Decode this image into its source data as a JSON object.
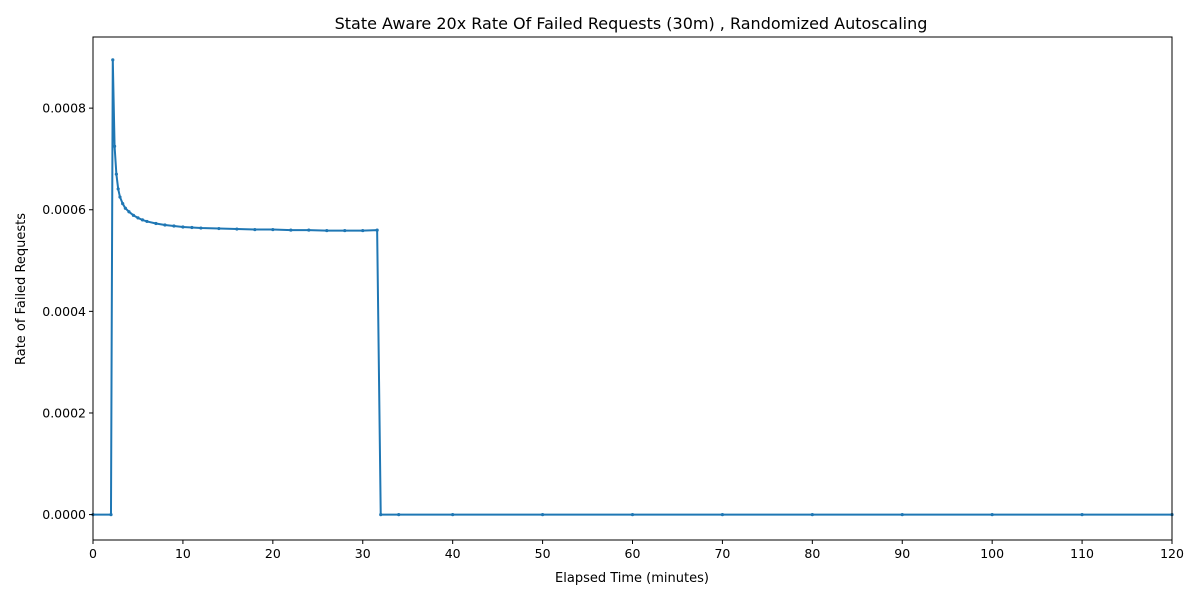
{
  "chart_data": {
    "type": "line",
    "title": "State Aware 20x Rate Of Failed Requests (30m) , Randomized Autoscaling",
    "xlabel": "Elapsed Time (minutes)",
    "ylabel": "Rate of Failed Requests",
    "xlim": [
      0,
      120
    ],
    "ylim": [
      -5e-05,
      0.00094
    ],
    "x_ticks": [
      0,
      10,
      20,
      30,
      40,
      50,
      60,
      70,
      80,
      90,
      100,
      110,
      120
    ],
    "x_tick_labels": [
      "0",
      "10",
      "20",
      "30",
      "40",
      "50",
      "60",
      "70",
      "80",
      "90",
      "100",
      "110",
      "120"
    ],
    "y_ticks": [
      0,
      0.0002,
      0.0004,
      0.0006,
      0.0008
    ],
    "y_tick_labels": [
      "0.0000",
      "0.0002",
      "0.0004",
      "0.0006",
      "0.0008"
    ],
    "grid": false,
    "legend": "none",
    "series_color": "#1f77b4",
    "series": [
      {
        "x": [
          0,
          2,
          2.2,
          2.4,
          2.6,
          2.8,
          3.0,
          3.3,
          3.6,
          4.0,
          4.5,
          5.0,
          5.5,
          6,
          7,
          8,
          9,
          10,
          11,
          12,
          14,
          16,
          18,
          20,
          22,
          24,
          26,
          28,
          30,
          31.6,
          32,
          34,
          40,
          50,
          60,
          70,
          80,
          90,
          100,
          110,
          120
        ],
        "y": [
          0,
          0,
          0.000895,
          0.000725,
          0.00067,
          0.000641,
          0.000625,
          0.000612,
          0.000603,
          0.000596,
          0.000589,
          0.000584,
          0.00058,
          0.000577,
          0.000573,
          0.00057,
          0.000568,
          0.000566,
          0.000565,
          0.000564,
          0.000563,
          0.000562,
          0.000561,
          0.000561,
          0.00056,
          0.00056,
          0.000559,
          0.000559,
          0.000559,
          0.00056,
          0,
          0,
          0,
          0,
          0,
          0,
          0,
          0,
          0,
          0,
          0
        ]
      }
    ]
  }
}
